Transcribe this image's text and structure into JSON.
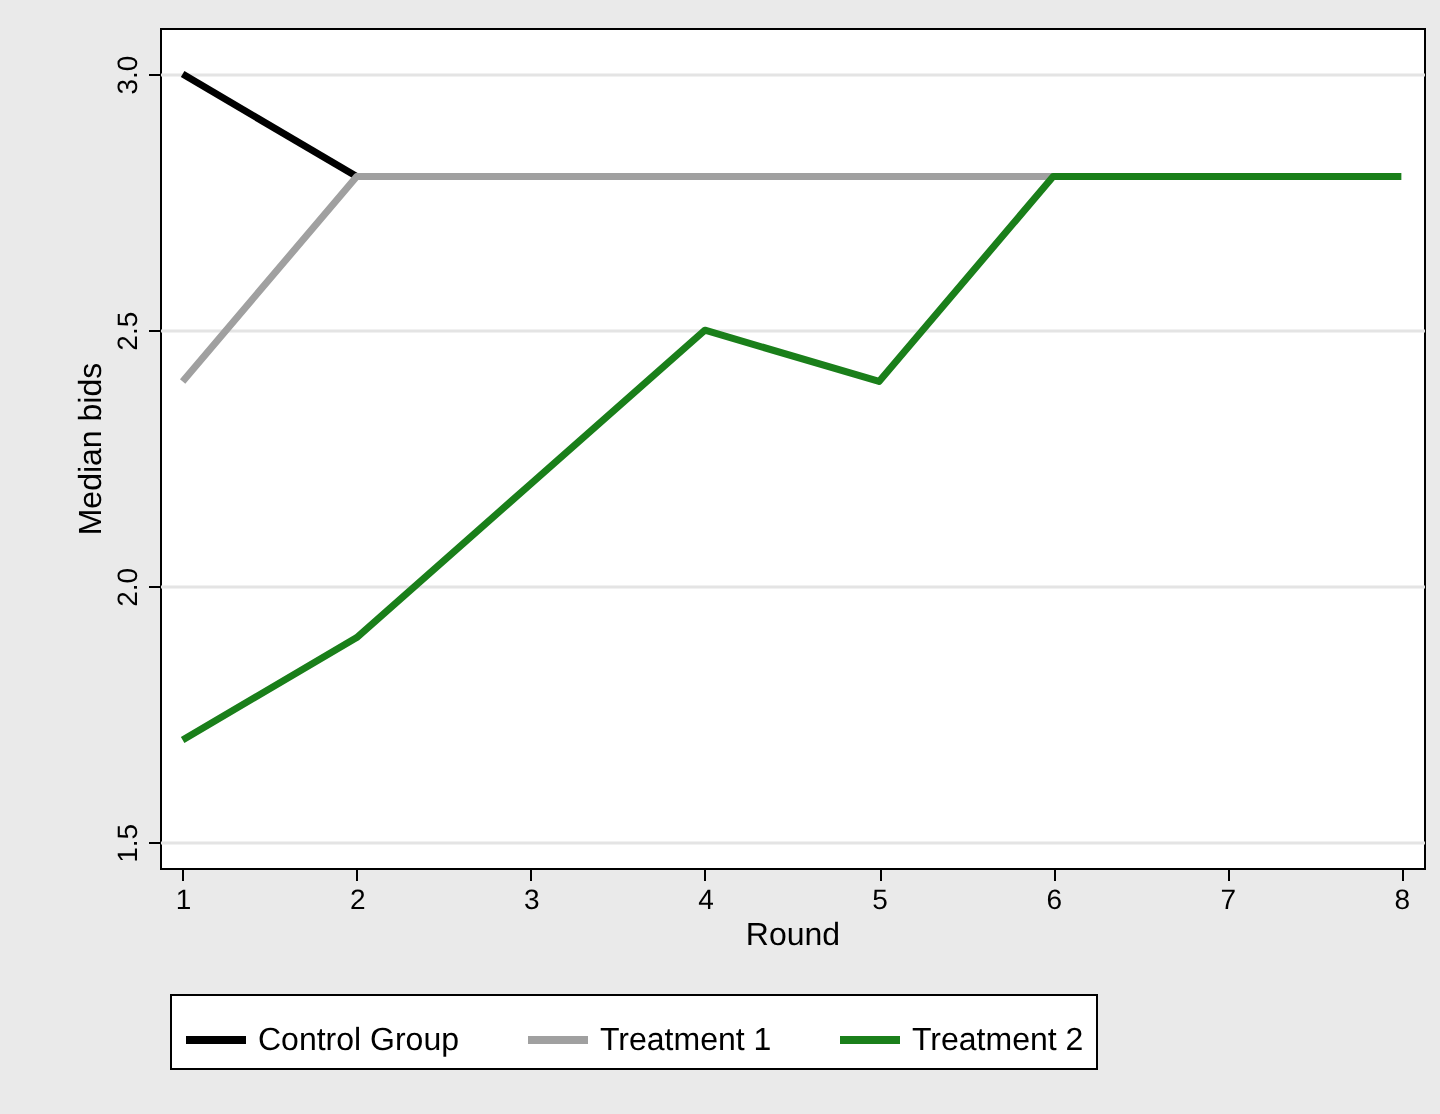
{
  "chart_data": {
    "type": "line",
    "xlabel": "Round",
    "ylabel": "Median bids",
    "x": [
      1,
      2,
      3,
      4,
      5,
      6,
      7,
      8
    ],
    "series": [
      {
        "name": "Control Group",
        "color": "#000000",
        "values": [
          3.0,
          2.8,
          null,
          null,
          null,
          null,
          null,
          null
        ]
      },
      {
        "name": "Treatment 1",
        "color": "#a0a0a0",
        "values": [
          2.4,
          2.8,
          2.8,
          2.8,
          2.8,
          2.8,
          null,
          null
        ]
      },
      {
        "name": "Treatment 2",
        "color": "#1a7f1a",
        "values": [
          1.7,
          1.9,
          2.2,
          2.5,
          2.4,
          2.8,
          2.8,
          2.8
        ]
      }
    ],
    "xlim": [
      0.87,
      8.13
    ],
    "xticks": [
      1,
      2,
      3,
      4,
      5,
      6,
      7,
      8
    ],
    "ylim": [
      1.45,
      3.09
    ],
    "yticks": [
      1.5,
      {
        "value": 2,
        "label": "2.0"
      },
      2.5,
      {
        "value": 3,
        "label": "3.0"
      }
    ],
    "grid": "y",
    "legend": "bottom",
    "marker": "none",
    "line_style": "solid"
  }
}
